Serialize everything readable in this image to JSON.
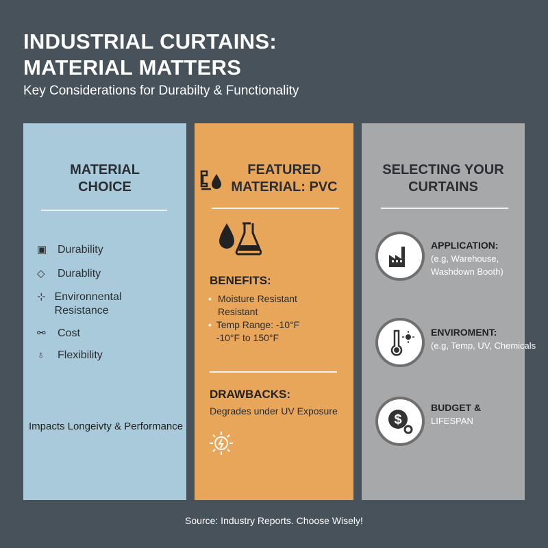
{
  "header": {
    "title_line1": "INDUSTRIAL CURTAINS:",
    "title_line2": "MATERIAL MATTERS",
    "subtitle": "Key Considerations for Durabilty & Functionality"
  },
  "material_choice": {
    "title_line1": "MATERIAL",
    "title_line2": "CHOICE",
    "items": [
      {
        "icon": "document-icon",
        "label": "Durability"
      },
      {
        "icon": "hammer-icon",
        "label": "Durablity"
      },
      {
        "icon": "environment-icon",
        "label": "Environnental Resistance"
      },
      {
        "icon": "coins-icon",
        "label": "Cost"
      },
      {
        "icon": "flex-icon",
        "label": "Flexibility"
      }
    ],
    "footer": "Impacts Longeivty & Performance"
  },
  "featured": {
    "title_line1": "FEATURED",
    "title_line2": "MATERIAL: PVC",
    "benefits_heading": "BENEFITS:",
    "benefits": [
      "Moisture Resistant Resistant",
      "Temp Range: -10°F -10°F to 150°F"
    ],
    "drawbacks_heading": "DRAWBACKS:",
    "drawbacks": "Degrades under UV Exposure",
    "colors": {
      "panel": "#e8a65a"
    }
  },
  "selecting": {
    "title_line1": "SELECTING YOUR",
    "title_line2": "CURTAINS",
    "items": [
      {
        "icon": "factory-icon",
        "heading": "APPLICATION:",
        "detail": "(e.g, Warehouse, Washdown Booth)"
      },
      {
        "icon": "thermometer-sun-icon",
        "heading": "ENVIROMENT:",
        "detail": "(e.g, Temp, UV, Chemicals"
      },
      {
        "icon": "dollar-gear-icon",
        "heading": "BUDGET &",
        "detail": "LIFESPAN"
      }
    ]
  },
  "footer": "Source: Industry Reports. Choose Wisely!"
}
